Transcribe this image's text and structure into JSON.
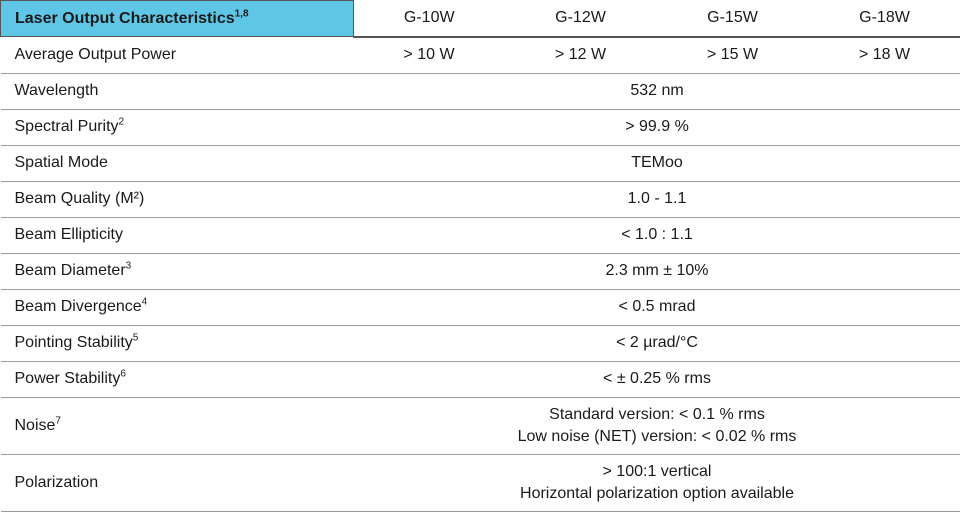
{
  "header": {
    "title": "Laser Output Characteristics",
    "note": "1,8",
    "columns": [
      "G-10W",
      "G-12W",
      "G-15W",
      "G-18W"
    ]
  },
  "rows": [
    {
      "label": "Average Output Power",
      "values": [
        "> 10 W",
        "> 12 W",
        "> 15 W",
        "> 18 W"
      ]
    },
    {
      "label": "Wavelength",
      "value": "532 nm"
    },
    {
      "label": "Spectral Purity",
      "note": "2",
      "value": "> 99.9 %"
    },
    {
      "label": "Spatial Mode",
      "value": "TEMoo"
    },
    {
      "label": "Beam Quality (M²)",
      "value": "1.0 - 1.1"
    },
    {
      "label": "Beam Ellipticity",
      "value": "< 1.0 : 1.1"
    },
    {
      "label": "Beam Diameter",
      "note": "3",
      "value": "2.3 mm ± 10%"
    },
    {
      "label": "Beam Divergence",
      "note": "4",
      "value": "< 0.5 mrad"
    },
    {
      "label": "Pointing Stability",
      "note": "5",
      "value": "< 2 µrad/°C"
    },
    {
      "label": "Power Stability",
      "note": "6",
      "value": "< ± 0.25 % rms"
    },
    {
      "label": "Noise",
      "note": "7",
      "lines": [
        "Standard version: < 0.1 % rms",
        "Low noise (NET) version: < 0.02 % rms"
      ]
    },
    {
      "label": "Polarization",
      "lines": [
        "> 100:1 vertical",
        "Horizontal polarization option available"
      ]
    }
  ]
}
